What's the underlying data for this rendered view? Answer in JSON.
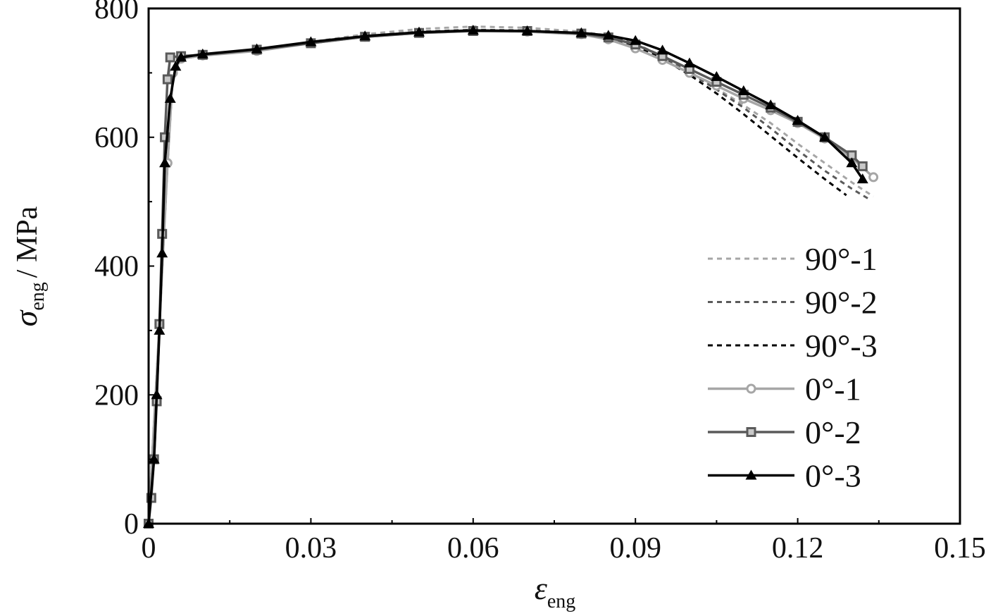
{
  "chart_data": {
    "type": "line",
    "xlabel": {
      "symbol": "ε",
      "subscript": "eng"
    },
    "ylabel": {
      "symbol": "σ",
      "subscript": "eng",
      "unit": "/ MPa"
    },
    "xlim": [
      0,
      0.15
    ],
    "ylim": [
      0,
      800
    ],
    "xticks": [
      "0",
      "0.03",
      "0.06",
      "0.09",
      "0.12",
      "0.15"
    ],
    "yticks": [
      "0",
      "200",
      "400",
      "600",
      "800"
    ],
    "legend_position": "right-middle",
    "grid": false,
    "series": [
      {
        "name": "90°-1",
        "color": "#a6a6a6",
        "dash": true,
        "marker": "none",
        "points": [
          [
            0,
            0
          ],
          [
            0.002,
            310
          ],
          [
            0.0035,
            560
          ],
          [
            0.0045,
            700
          ],
          [
            0.006,
            722
          ],
          [
            0.01,
            728
          ],
          [
            0.02,
            736
          ],
          [
            0.03,
            748
          ],
          [
            0.04,
            760
          ],
          [
            0.05,
            768
          ],
          [
            0.06,
            772
          ],
          [
            0.07,
            770
          ],
          [
            0.08,
            764
          ],
          [
            0.085,
            758
          ],
          [
            0.09,
            745
          ],
          [
            0.095,
            726
          ],
          [
            0.1,
            702
          ],
          [
            0.105,
            676
          ],
          [
            0.11,
            650
          ],
          [
            0.115,
            622
          ],
          [
            0.12,
            590
          ],
          [
            0.125,
            560
          ],
          [
            0.13,
            530
          ],
          [
            0.134,
            508
          ]
        ]
      },
      {
        "name": "90°-2",
        "color": "#5a5a5a",
        "dash": true,
        "marker": "none",
        "points": [
          [
            0,
            0
          ],
          [
            0.002,
            310
          ],
          [
            0.0035,
            560
          ],
          [
            0.0045,
            700
          ],
          [
            0.006,
            722
          ],
          [
            0.01,
            727
          ],
          [
            0.02,
            735
          ],
          [
            0.03,
            746
          ],
          [
            0.04,
            757
          ],
          [
            0.05,
            764
          ],
          [
            0.06,
            767
          ],
          [
            0.07,
            766
          ],
          [
            0.08,
            762
          ],
          [
            0.085,
            757
          ],
          [
            0.09,
            745
          ],
          [
            0.095,
            726
          ],
          [
            0.1,
            700
          ],
          [
            0.105,
            674
          ],
          [
            0.11,
            646
          ],
          [
            0.115,
            614
          ],
          [
            0.12,
            580
          ],
          [
            0.125,
            548
          ],
          [
            0.13,
            520
          ],
          [
            0.133,
            505
          ]
        ]
      },
      {
        "name": "90°-3",
        "color": "#000000",
        "dash": true,
        "marker": "none",
        "points": [
          [
            0,
            0
          ],
          [
            0.002,
            310
          ],
          [
            0.0035,
            560
          ],
          [
            0.0045,
            700
          ],
          [
            0.006,
            722
          ],
          [
            0.01,
            727
          ],
          [
            0.02,
            735
          ],
          [
            0.03,
            746
          ],
          [
            0.04,
            756
          ],
          [
            0.05,
            762
          ],
          [
            0.06,
            765
          ],
          [
            0.07,
            764
          ],
          [
            0.08,
            760
          ],
          [
            0.085,
            755
          ],
          [
            0.09,
            742
          ],
          [
            0.095,
            722
          ],
          [
            0.1,
            697
          ],
          [
            0.105,
            668
          ],
          [
            0.11,
            636
          ],
          [
            0.115,
            602
          ],
          [
            0.12,
            568
          ],
          [
            0.125,
            535
          ],
          [
            0.129,
            510
          ]
        ]
      },
      {
        "name": "0°-1",
        "color": "#a6a6a6",
        "dash": false,
        "marker": "circle",
        "points": [
          [
            0,
            0
          ],
          [
            0.002,
            310
          ],
          [
            0.0035,
            560
          ],
          [
            0.0045,
            700
          ],
          [
            0.006,
            722
          ],
          [
            0.01,
            727
          ],
          [
            0.02,
            734
          ],
          [
            0.03,
            746
          ],
          [
            0.04,
            756
          ],
          [
            0.05,
            762
          ],
          [
            0.06,
            765
          ],
          [
            0.07,
            764
          ],
          [
            0.08,
            760
          ],
          [
            0.085,
            752
          ],
          [
            0.09,
            738
          ],
          [
            0.095,
            720
          ],
          [
            0.1,
            700
          ],
          [
            0.105,
            680
          ],
          [
            0.11,
            660
          ],
          [
            0.115,
            642
          ],
          [
            0.12,
            622
          ],
          [
            0.125,
            598
          ],
          [
            0.13,
            568
          ],
          [
            0.134,
            538
          ]
        ]
      },
      {
        "name": "0°-2",
        "color": "#5a5a5a",
        "dash": false,
        "marker": "square",
        "points": [
          [
            0,
            0
          ],
          [
            0.0005,
            40
          ],
          [
            0.001,
            100
          ],
          [
            0.0015,
            190
          ],
          [
            0.002,
            310
          ],
          [
            0.0025,
            450
          ],
          [
            0.003,
            600
          ],
          [
            0.0035,
            690
          ],
          [
            0.004,
            724
          ],
          [
            0.006,
            726
          ],
          [
            0.01,
            728
          ],
          [
            0.02,
            736
          ],
          [
            0.03,
            746
          ],
          [
            0.04,
            756
          ],
          [
            0.05,
            762
          ],
          [
            0.06,
            765
          ],
          [
            0.07,
            765
          ],
          [
            0.08,
            761
          ],
          [
            0.085,
            755
          ],
          [
            0.09,
            744
          ],
          [
            0.095,
            726
          ],
          [
            0.1,
            706
          ],
          [
            0.105,
            686
          ],
          [
            0.11,
            666
          ],
          [
            0.115,
            646
          ],
          [
            0.12,
            624
          ],
          [
            0.125,
            600
          ],
          [
            0.13,
            572
          ],
          [
            0.132,
            555
          ]
        ]
      },
      {
        "name": "0°-3",
        "color": "#000000",
        "dash": false,
        "marker": "triangle",
        "points": [
          [
            0,
            0
          ],
          [
            0.001,
            100
          ],
          [
            0.0015,
            200
          ],
          [
            0.002,
            300
          ],
          [
            0.0025,
            420
          ],
          [
            0.003,
            560
          ],
          [
            0.004,
            660
          ],
          [
            0.005,
            710
          ],
          [
            0.006,
            724
          ],
          [
            0.01,
            729
          ],
          [
            0.02,
            737
          ],
          [
            0.03,
            748
          ],
          [
            0.04,
            757
          ],
          [
            0.05,
            763
          ],
          [
            0.06,
            766
          ],
          [
            0.07,
            765
          ],
          [
            0.08,
            762
          ],
          [
            0.085,
            758
          ],
          [
            0.09,
            750
          ],
          [
            0.095,
            735
          ],
          [
            0.1,
            715
          ],
          [
            0.105,
            694
          ],
          [
            0.11,
            672
          ],
          [
            0.115,
            650
          ],
          [
            0.12,
            626
          ],
          [
            0.125,
            600
          ],
          [
            0.13,
            560
          ],
          [
            0.132,
            535
          ]
        ]
      }
    ]
  }
}
